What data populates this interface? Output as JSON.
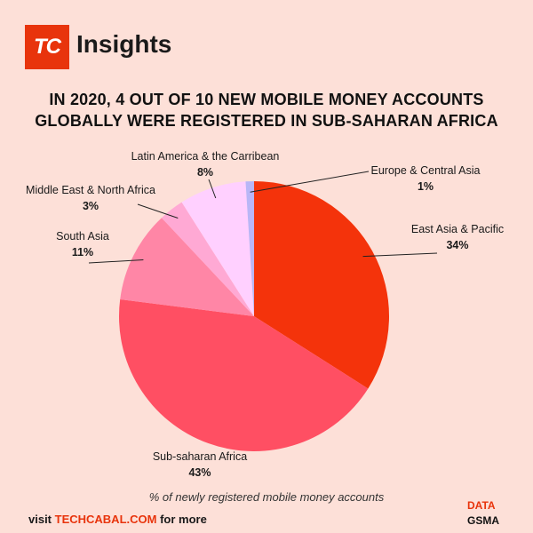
{
  "logo": {
    "letters": "TC",
    "brand": "Insights"
  },
  "headline": {
    "line1": "IN 2020, 4 OUT OF 10 NEW MOBILE MONEY ACCOUNTS",
    "line2": "GLOBALLY WERE REGISTERED IN SUB-SAHARAN AFRICA"
  },
  "chart_data": {
    "type": "pie",
    "slices": [
      {
        "label": "East Asia & Pacific",
        "value": 34,
        "value_label": "34%",
        "color": "#f4330b"
      },
      {
        "label": "Sub-saharan Africa",
        "value": 43,
        "value_label": "43%",
        "color": "#ff4f63"
      },
      {
        "label": "South Asia",
        "value": 11,
        "value_label": "11%",
        "color": "#ff86a6"
      },
      {
        "label": "Middle East & North Africa",
        "value": 3,
        "value_label": "3%",
        "color": "#ffa9d4"
      },
      {
        "label": "Latin America & the Carribean",
        "value": 8,
        "value_label": "8%",
        "color": "#ffd0ff"
      },
      {
        "label": "Europe & Central Asia",
        "value": 1,
        "value_label": "1%",
        "color": "#b9b6f7"
      }
    ],
    "caption": "% of newly registered mobile money accounts"
  },
  "footer": {
    "prefix": "visit ",
    "link": "TECHCABAL.COM",
    "suffix": " for more"
  },
  "source": {
    "label": "DATA",
    "name": "GSMA"
  }
}
